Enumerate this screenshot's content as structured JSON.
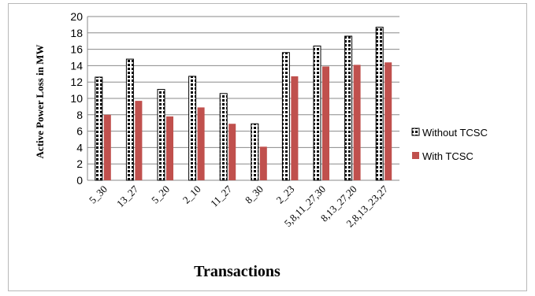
{
  "chart_data": {
    "type": "bar",
    "title": "",
    "xlabel": "Transactions",
    "ylabel": "Active Power Loss  in MW",
    "ylim": [
      0,
      20
    ],
    "yticks": [
      0,
      2,
      4,
      6,
      8,
      10,
      12,
      14,
      16,
      18,
      20
    ],
    "grid": true,
    "legend_position": "right",
    "categories": [
      "5_30",
      "13_27",
      "5_20",
      "2_10",
      "11_27",
      "8_30",
      "2_23",
      "5,8,11_27,30",
      "8,13_27,20",
      "2,8,13_23,27"
    ],
    "series": [
      {
        "name": "Without TCSC",
        "style": "black-white-dotted",
        "color": "#000000",
        "values": [
          12.6,
          14.8,
          11.1,
          12.7,
          10.6,
          6.9,
          15.6,
          16.4,
          17.6,
          18.7
        ]
      },
      {
        "name": "With TCSC",
        "style": "solid",
        "color": "#c0504d",
        "values": [
          8.0,
          9.7,
          7.8,
          8.9,
          6.9,
          4.1,
          12.7,
          13.9,
          14.1,
          14.4
        ]
      }
    ]
  }
}
